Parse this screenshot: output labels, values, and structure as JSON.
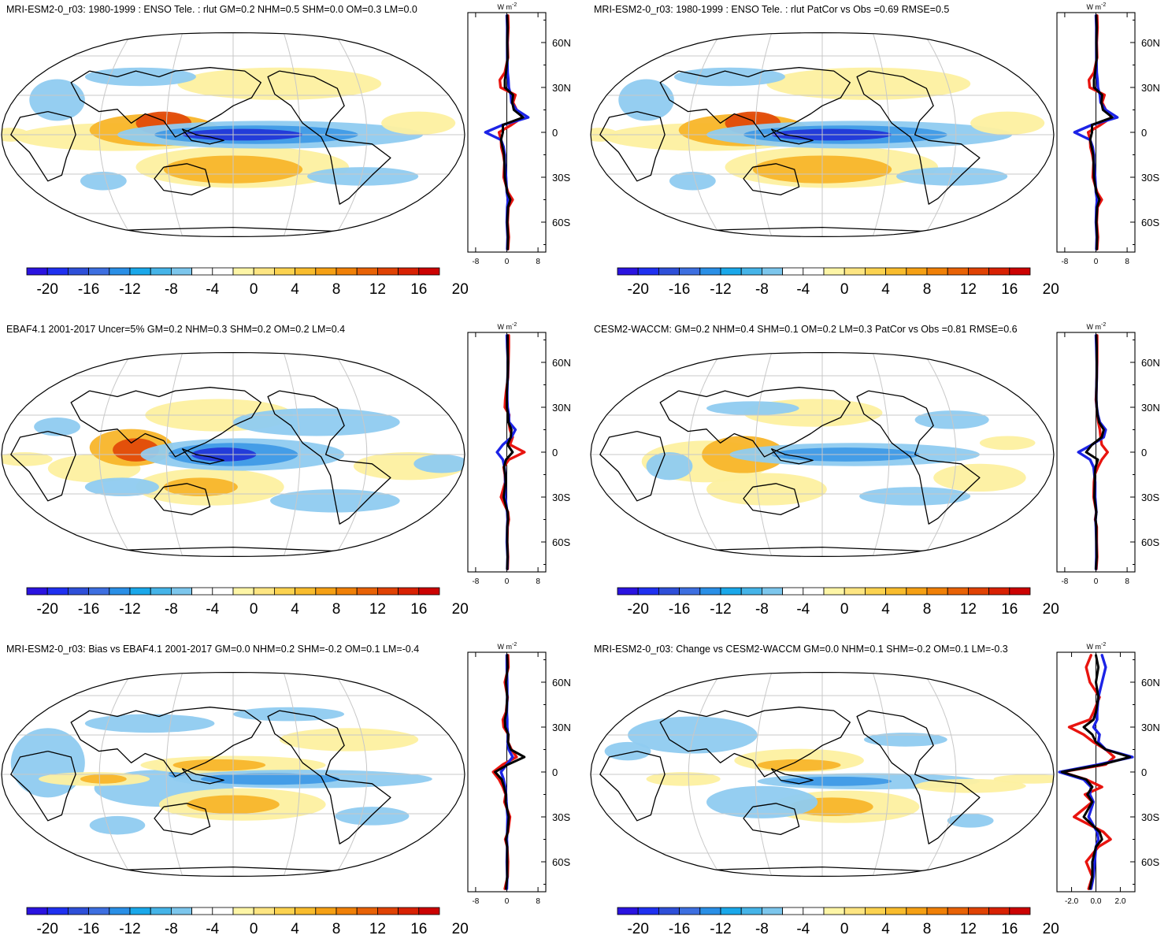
{
  "figure": {
    "unit_label": "W m",
    "unit_exp": "-2",
    "colorbar_colors": [
      "#2a13e0",
      "#1f30f0",
      "#2e4fd8",
      "#3d6fe0",
      "#2a8fe6",
      "#1aa8ea",
      "#45b4e8",
      "#7cc6ec",
      "#ffffff",
      "#ffffff",
      "#fdf5a6",
      "#fde582",
      "#fbd24f",
      "#f8bc2d",
      "#f5a014",
      "#f08007",
      "#e86206",
      "#e04204",
      "#d82103",
      "#cc0202"
    ],
    "colorbar_labels": [
      "-20",
      "-16",
      "-12",
      "-8",
      "-4",
      "0",
      "4",
      "8",
      "12",
      "16",
      "20"
    ],
    "latitude_labels": [
      "60N",
      "30N",
      "0",
      "30S",
      "60S"
    ],
    "map_colors": {
      "blue_light": "#8fcbf0",
      "blue_mid": "#3f9ae6",
      "blue_dark": "#2237d8",
      "yellow": "#fdf0a0",
      "orange": "#f8b52a",
      "red": "#e24a0a"
    },
    "line_colors": {
      "red": "#e8140f",
      "blue": "#1c23e6",
      "black": "#000000"
    }
  },
  "chart_data": [
    {
      "type": "heatmap",
      "panel": "model",
      "title": "MRI-ESM2-0_r03: 1980-1999 : ENSO Tele. : rlut GM=0.2 NHM=0.5 SHM=0.0 OM=0.3 LM=0.0",
      "variable": "rlut ENSO teleconnection",
      "color_range": [
        -22,
        22
      ],
      "zonal_profile": {
        "type": "line",
        "x_ticks": [
          "-8",
          "0",
          "8"
        ],
        "xlim": [
          -10,
          10
        ],
        "ylim": [
          -80,
          80
        ],
        "lat": [
          -78,
          -70,
          -60,
          -50,
          -45,
          -40,
          -30,
          -20,
          -15,
          -10,
          -5,
          0,
          5,
          10,
          15,
          20,
          25,
          30,
          35,
          40,
          50,
          60,
          70,
          78
        ],
        "series": [
          {
            "name": "model",
            "color": "red",
            "values": [
              0.3,
              0.5,
              0.2,
              0.4,
              1.5,
              0.3,
              -0.8,
              -0.6,
              -0.9,
              -1.4,
              -1.5,
              -2.0,
              1.2,
              4.0,
              2.5,
              1.6,
              2.2,
              -1.6,
              -1.8,
              -0.5,
              0.3,
              0.2,
              0.4,
              0.3
            ]
          },
          {
            "name": "obs",
            "color": "blue",
            "values": [
              0.1,
              0.2,
              0.0,
              0.1,
              0.3,
              0.0,
              -0.2,
              -0.5,
              -0.5,
              -0.8,
              -1.5,
              -5.5,
              -1.0,
              5.5,
              2.5,
              1.2,
              1.0,
              0.5,
              0.4,
              0.2,
              0.1,
              0.1,
              0.1,
              0.0
            ]
          },
          {
            "name": "other",
            "color": "black",
            "values": [
              0.2,
              0.3,
              0.1,
              0.3,
              0.9,
              0.1,
              -0.5,
              -0.6,
              -0.7,
              -1.1,
              -1.5,
              -1.0,
              -1.0,
              4.2,
              1.8,
              1.4,
              1.6,
              -0.5,
              -0.5,
              -0.2,
              0.2,
              0.1,
              0.2,
              0.1
            ]
          }
        ]
      }
    },
    {
      "type": "heatmap",
      "panel": "model",
      "title": "MRI-ESM2-0_r03: 1980-1999 : ENSO Tele. : rlut PatCor vs Obs =0.69 RMSE=0.5",
      "variable": "rlut ENSO teleconnection",
      "color_range": [
        -22,
        22
      ],
      "zonal_profile": {
        "type": "line",
        "x_ticks": [
          "-8",
          "0",
          "8"
        ],
        "xlim": [
          -10,
          10
        ],
        "ylim": [
          -80,
          80
        ],
        "lat": [
          -78,
          -70,
          -60,
          -50,
          -45,
          -40,
          -30,
          -20,
          -15,
          -10,
          -5,
          0,
          5,
          10,
          15,
          20,
          25,
          30,
          35,
          40,
          50,
          60,
          70,
          78
        ],
        "series": [
          {
            "name": "model",
            "color": "red",
            "values": [
              0.3,
              0.5,
              0.2,
              0.4,
              1.5,
              0.3,
              -0.8,
              -0.6,
              -0.9,
              -1.4,
              -1.5,
              -2.0,
              1.2,
              4.0,
              2.5,
              1.6,
              2.2,
              -1.6,
              -1.8,
              -0.5,
              0.3,
              0.2,
              0.4,
              0.3
            ]
          },
          {
            "name": "obs",
            "color": "blue",
            "values": [
              0.1,
              0.2,
              0.0,
              0.1,
              0.3,
              0.0,
              -0.2,
              -0.5,
              -0.5,
              -0.8,
              -1.5,
              -5.5,
              -1.0,
              5.5,
              2.5,
              1.2,
              1.0,
              0.5,
              0.4,
              0.2,
              0.1,
              0.1,
              0.1,
              0.0
            ]
          },
          {
            "name": "other",
            "color": "black",
            "values": [
              0.2,
              0.3,
              0.1,
              0.3,
              0.9,
              0.1,
              -0.5,
              -0.6,
              -0.7,
              -1.1,
              -1.5,
              -1.0,
              -1.0,
              4.2,
              1.8,
              1.4,
              1.6,
              -0.5,
              -0.5,
              -0.2,
              0.2,
              0.1,
              0.2,
              0.1
            ]
          }
        ]
      }
    },
    {
      "type": "heatmap",
      "panel": "obs",
      "title": "EBAF4.1 2001-2017 Uncer=5% GM=0.2 NHM=0.3 SHM=0.2 OM=0.2 LM=0.4",
      "variable": "rlut ENSO teleconnection",
      "color_range": [
        -22,
        22
      ],
      "zonal_profile": {
        "type": "line",
        "x_ticks": [
          "-8",
          "0",
          "8"
        ],
        "xlim": [
          -10,
          10
        ],
        "ylim": [
          -80,
          80
        ],
        "lat": [
          -78,
          -70,
          -60,
          -50,
          -45,
          -40,
          -30,
          -20,
          -15,
          -10,
          -5,
          0,
          5,
          10,
          15,
          20,
          25,
          30,
          35,
          40,
          50,
          60,
          70,
          78
        ],
        "series": [
          {
            "name": "model",
            "color": "red",
            "values": [
              0.2,
              0.3,
              0.1,
              0.2,
              0.5,
              0.3,
              -1.5,
              -0.4,
              -0.5,
              -0.8,
              0.5,
              4.5,
              0.8,
              1.5,
              0.8,
              0.5,
              0.6,
              -0.5,
              -0.4,
              -0.2,
              0.3,
              0.4,
              0.5,
              0.5
            ]
          },
          {
            "name": "obs",
            "color": "blue",
            "values": [
              0.1,
              0.2,
              0.0,
              0.1,
              0.2,
              0.1,
              -0.4,
              -0.4,
              -0.4,
              -0.6,
              -1.0,
              -2.5,
              -1.0,
              1.2,
              2.2,
              0.6,
              0.5,
              0.2,
              0.1,
              0.1,
              0.2,
              0.3,
              0.1,
              0.0
            ]
          },
          {
            "name": "other",
            "color": "black",
            "values": [
              0.1,
              0.2,
              0.1,
              0.1,
              0.3,
              0.2,
              -0.8,
              -0.3,
              -0.4,
              -0.7,
              -0.2,
              1.5,
              0.2,
              1.0,
              1.2,
              0.4,
              0.3,
              0.0,
              0.0,
              0.0,
              0.2,
              0.3,
              0.2,
              0.2
            ]
          }
        ]
      }
    },
    {
      "type": "heatmap",
      "panel": "reference_model",
      "title": "CESM2-WACCM: GM=0.2 NHM=0.4 SHM=0.1 OM=0.2 LM=0.3 PatCor vs Obs =0.81 RMSE=0.6",
      "variable": "rlut ENSO teleconnection",
      "color_range": [
        -22,
        22
      ],
      "zonal_profile": {
        "type": "line",
        "x_ticks": [
          "-8",
          "0",
          "8"
        ],
        "xlim": [
          -10,
          10
        ],
        "ylim": [
          -80,
          80
        ],
        "lat": [
          -78,
          -70,
          -60,
          -50,
          -45,
          -40,
          -30,
          -20,
          -15,
          -10,
          -5,
          0,
          5,
          10,
          15,
          20,
          25,
          30,
          35,
          40,
          50,
          60,
          70,
          78
        ],
        "series": [
          {
            "name": "model",
            "color": "red",
            "values": [
              0.1,
              0.3,
              0.2,
              0.2,
              -0.2,
              0.1,
              -0.6,
              -0.5,
              -0.3,
              0.5,
              1.5,
              3.0,
              1.5,
              1.2,
              1.0,
              0.6,
              0.4,
              0.2,
              0.0,
              0.1,
              0.2,
              0.3,
              0.3,
              0.3
            ]
          },
          {
            "name": "obs",
            "color": "blue",
            "values": [
              0.0,
              0.1,
              0.1,
              0.0,
              -0.1,
              0.1,
              -0.2,
              -0.2,
              -0.4,
              -0.6,
              -1.5,
              -4.5,
              -1.0,
              2.0,
              2.5,
              1.0,
              0.5,
              0.2,
              0.1,
              0.1,
              0.2,
              0.2,
              0.1,
              0.0
            ]
          },
          {
            "name": "other",
            "color": "black",
            "values": [
              0.0,
              0.2,
              0.1,
              0.1,
              -0.1,
              0.1,
              -0.4,
              -0.3,
              -0.3,
              -0.1,
              0.5,
              -2.5,
              -1.0,
              1.5,
              2.0,
              0.8,
              0.4,
              0.2,
              0.1,
              0.1,
              0.2,
              0.2,
              0.2,
              0.1
            ]
          }
        ]
      }
    },
    {
      "type": "heatmap",
      "panel": "bias",
      "title": "MRI-ESM2-0_r03: Bias vs EBAF4.1 2001-2017 GM=0.0 NHM=0.2 SHM=-0.2 OM=0.1 LM=-0.4",
      "variable": "rlut ENSO teleconnection bias",
      "color_range": [
        -22,
        22
      ],
      "zonal_profile": {
        "type": "line",
        "x_ticks": [
          "-8",
          "0",
          "8"
        ],
        "xlim": [
          -10,
          10
        ],
        "ylim": [
          -80,
          80
        ],
        "lat": [
          -78,
          -70,
          -60,
          -50,
          -45,
          -40,
          -30,
          -20,
          -15,
          -10,
          -5,
          0,
          5,
          10,
          15,
          20,
          25,
          30,
          35,
          40,
          50,
          60,
          70,
          78
        ],
        "series": [
          {
            "name": "model",
            "color": "red",
            "values": [
              -0.5,
              0.2,
              0.3,
              0.1,
              -0.4,
              0.3,
              0.8,
              -0.6,
              -0.3,
              -1.0,
              -2.0,
              -3.5,
              -1.0,
              2.5,
              1.2,
              0.3,
              0.4,
              -0.8,
              -1.0,
              -0.2,
              0.2,
              -0.5,
              0.4,
              0.3
            ]
          },
          {
            "name": "obs",
            "color": "blue",
            "values": [
              0.0,
              0.1,
              0.0,
              0.1,
              0.0,
              0.1,
              0.2,
              -0.1,
              -0.2,
              -0.4,
              -0.8,
              -1.5,
              0.0,
              1.5,
              0.5,
              0.2,
              0.3,
              0.1,
              0.1,
              0.0,
              0.1,
              0.1,
              0.0,
              0.0
            ]
          },
          {
            "name": "other",
            "color": "black",
            "values": [
              -0.2,
              0.1,
              0.1,
              0.1,
              -0.2,
              0.2,
              0.5,
              -0.3,
              -0.2,
              -0.7,
              -1.3,
              -3.0,
              0.3,
              4.5,
              1.0,
              0.3,
              0.4,
              -0.4,
              -0.5,
              -0.1,
              0.1,
              -0.2,
              0.2,
              0.1
            ]
          }
        ]
      }
    },
    {
      "type": "heatmap",
      "panel": "change",
      "title": "MRI-ESM2-0_r03: Change vs CESM2-WACCM GM=0.0 NHM=0.1 SHM=-0.2 OM=0.1 LM=-0.3",
      "variable": "rlut ENSO teleconnection change",
      "color_range": [
        -22,
        22
      ],
      "zonal_profile": {
        "type": "line",
        "x_ticks": [
          "-2.0",
          "0.0",
          "2.0"
        ],
        "xlim": [
          -3.2,
          3.2
        ],
        "ylim": [
          -80,
          80
        ],
        "lat": [
          -78,
          -70,
          -60,
          -50,
          -45,
          -40,
          -30,
          -20,
          -15,
          -10,
          -5,
          0,
          5,
          10,
          15,
          20,
          25,
          30,
          35,
          40,
          50,
          60,
          70,
          78
        ],
        "series": [
          {
            "name": "model",
            "color": "red",
            "values": [
              -0.6,
              -0.3,
              -0.8,
              0.2,
              1.2,
              0.6,
              -1.8,
              -0.3,
              -0.9,
              0.5,
              -0.8,
              -2.8,
              0.8,
              1.5,
              0.8,
              -0.2,
              -1.0,
              -2.2,
              -0.5,
              -0.2,
              0.3,
              -0.5,
              -0.8,
              -0.4
            ]
          },
          {
            "name": "obs",
            "color": "blue",
            "values": [
              -0.4,
              -0.2,
              -0.1,
              0.0,
              0.2,
              0.1,
              -0.6,
              -0.2,
              -0.5,
              -0.4,
              -1.0,
              -3.0,
              0.2,
              3.0,
              0.8,
              0.2,
              0.3,
              -0.2,
              0.1,
              0.1,
              0.2,
              0.5,
              0.8,
              0.5
            ]
          },
          {
            "name": "other",
            "color": "black",
            "values": [
              -0.5,
              -0.3,
              -0.3,
              0.0,
              0.5,
              0.3,
              -1.0,
              -0.3,
              -0.7,
              -0.3,
              -0.8,
              -2.8,
              0.5,
              2.8,
              0.8,
              0.0,
              -0.3,
              -1.0,
              -0.2,
              0.0,
              0.2,
              0.0,
              0.2,
              0.0
            ]
          }
        ]
      }
    }
  ]
}
